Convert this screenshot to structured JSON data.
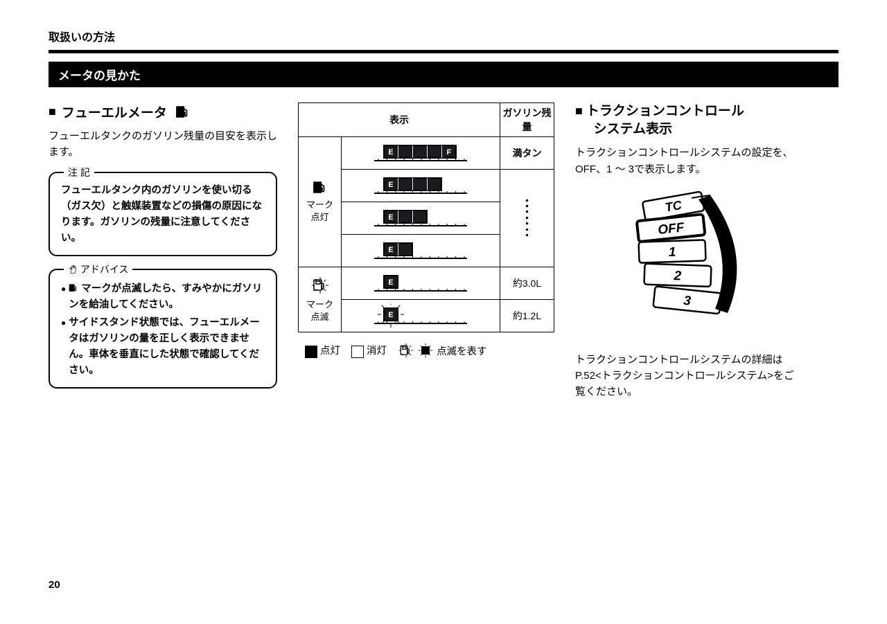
{
  "doc": {
    "header": "取扱いの方法",
    "section_banner": "メータの見かた",
    "page_number": "20"
  },
  "left": {
    "title": "フューエルメータ",
    "intro": "フューエルタンクのガソリン残量の目安を表示します。",
    "note": {
      "label": "注 記",
      "text": "フューエルタンク内のガソリンを使い切る（ガス欠）と触媒装置などの損傷の原因になります。ガソリンの残量に注意してください。"
    },
    "advice": {
      "label": "アドバイス",
      "items": [
        " マークが点滅したら、すみやかにガソリンを給油してください。",
        "サイドスタンド状態では、フューエルメータはガソリンの量を正しく表示できません。車体を垂直にした状態で確認してください。"
      ]
    }
  },
  "table": {
    "header_display": "表示",
    "header_remaining": "ガソリン残量",
    "row_lit_label_1": "マーク",
    "row_lit_label_2": "点灯",
    "full_text": "満タン",
    "row_blink_label_1": "マーク",
    "row_blink_label_2": "点滅",
    "approx_30": "約3.0L",
    "approx_12": "約1.2L",
    "gauge": {
      "e_label": "E",
      "f_label": "F",
      "fill_color": "#1b1b1d",
      "empty_color": "#ffffff",
      "outline_color": "#000000"
    },
    "legend": {
      "lit": "点灯",
      "off": "消灯",
      "blink": "点滅を表す"
    }
  },
  "right": {
    "title_line1": "トラクションコントロール",
    "title_line2": "システム表示",
    "intro": "トラクションコントロールシステムの設定を、OFF、1 ～ 3で表示します。",
    "tc_labels": {
      "tc": "TC",
      "off": "OFF",
      "l1": "1",
      "l2": "2",
      "l3": "3"
    },
    "note": "トラクションコントロールシステムの詳細はP.52<トラクションコントロールシステム>をご覧ください。"
  },
  "colors": {
    "text": "#000000",
    "bg": "#ffffff",
    "banner_bg": "#000000",
    "banner_fg": "#ffffff"
  }
}
